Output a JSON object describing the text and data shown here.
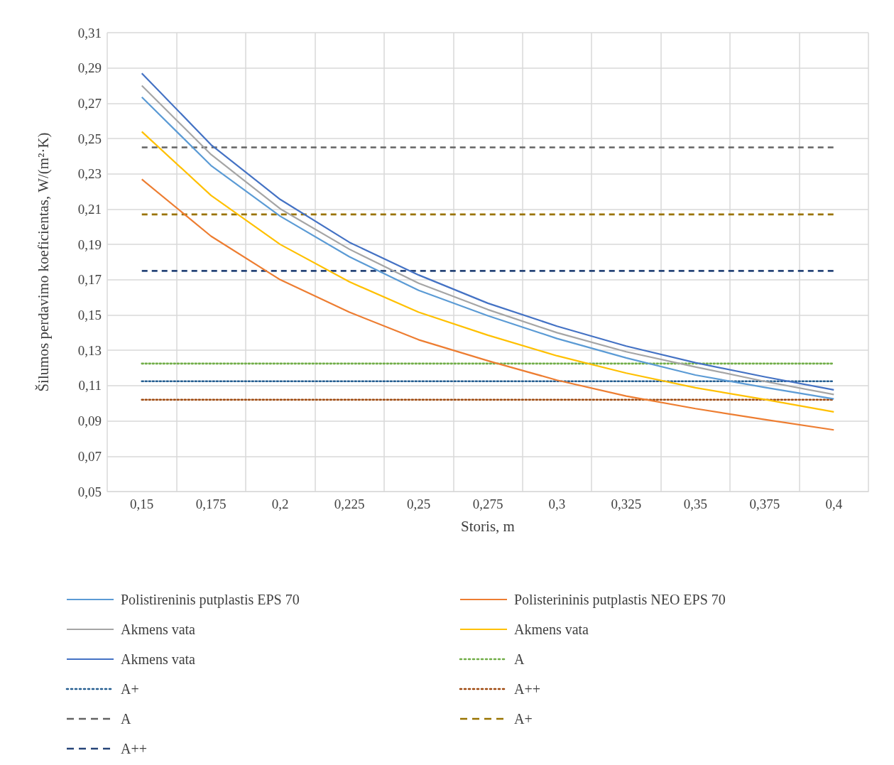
{
  "chart_data": {
    "type": "line",
    "xlabel": "Storis, m",
    "ylabel": "Šilumos perdavimo koeficientas, W/(m²·K)",
    "categories": [
      "0,15",
      "0,175",
      "0,2",
      "0,225",
      "0,25",
      "0,275",
      "0,3",
      "0,325",
      "0,35",
      "0,375",
      "0,4"
    ],
    "ylim": [
      0.05,
      0.31
    ],
    "yticks": [
      {
        "value": 0.05,
        "label": "0,05"
      },
      {
        "value": 0.07,
        "label": "0,07"
      },
      {
        "value": 0.09,
        "label": "0,09"
      },
      {
        "value": 0.11,
        "label": "0,11"
      },
      {
        "value": 0.13,
        "label": "0,13"
      },
      {
        "value": 0.15,
        "label": "0,15"
      },
      {
        "value": 0.17,
        "label": "0,17"
      },
      {
        "value": 0.19,
        "label": "0,19"
      },
      {
        "value": 0.21,
        "label": "0,21"
      },
      {
        "value": 0.23,
        "label": "0,23"
      },
      {
        "value": 0.25,
        "label": "0,25"
      },
      {
        "value": 0.27,
        "label": "0,27"
      },
      {
        "value": 0.29,
        "label": "0,29"
      },
      {
        "value": 0.31,
        "label": "0,31"
      }
    ],
    "grid": true,
    "legend": "bottom",
    "marker": "none",
    "series": [
      {
        "name": "Polistireninis putplastis EPS 70",
        "color": "#5b9bd5",
        "line_style": "solid",
        "values": [
          0.2735,
          0.2347,
          0.206,
          0.183,
          0.164,
          0.1496,
          0.1367,
          0.1257,
          0.116,
          0.109,
          0.1025
        ]
      },
      {
        "name": "Polisterininis putplastis NEO EPS 70",
        "color": "#ed7d31",
        "line_style": "solid",
        "values": [
          0.2269,
          0.1947,
          0.17,
          0.1516,
          0.136,
          0.1241,
          0.1131,
          0.1041,
          0.097,
          0.0908,
          0.0849
        ]
      },
      {
        "name": "Akmens vata",
        "color": "#a5a5a5",
        "line_style": "solid",
        "values": [
          0.28,
          0.241,
          0.2102,
          0.1873,
          0.168,
          0.1531,
          0.14,
          0.1292,
          0.1206,
          0.1124,
          0.105
        ]
      },
      {
        "name": "Akmens vata",
        "color": "#ffc000",
        "line_style": "solid",
        "values": [
          0.2539,
          0.2178,
          0.19,
          0.1688,
          0.1516,
          0.1386,
          0.1269,
          0.1171,
          0.1088,
          0.1022,
          0.0951
        ]
      },
      {
        "name": "Akmens vata",
        "color": "#4472c4",
        "line_style": "solid",
        "values": [
          0.287,
          0.2465,
          0.2155,
          0.1912,
          0.1727,
          0.1567,
          0.1437,
          0.1324,
          0.123,
          0.115,
          0.1076
        ]
      },
      {
        "name": "A",
        "color": "#70ad47",
        "line_style": "dotted",
        "values": [
          0.1225,
          0.1225,
          0.1225,
          0.1225,
          0.1225,
          0.1225,
          0.1225,
          0.1225,
          0.1225,
          0.1225,
          0.1225
        ]
      },
      {
        "name": "A+",
        "color": "#255e91",
        "line_style": "dotted",
        "values": [
          0.1125,
          0.1125,
          0.1125,
          0.1125,
          0.1125,
          0.1125,
          0.1125,
          0.1125,
          0.1125,
          0.1125,
          0.1125
        ]
      },
      {
        "name": "A++",
        "color": "#9e480e",
        "line_style": "dotted",
        "values": [
          0.102,
          0.102,
          0.102,
          0.102,
          0.102,
          0.102,
          0.102,
          0.102,
          0.102,
          0.102,
          0.102
        ]
      },
      {
        "name": "A",
        "color": "#636363",
        "line_style": "dashed",
        "values": [
          0.245,
          0.245,
          0.245,
          0.245,
          0.245,
          0.245,
          0.245,
          0.245,
          0.245,
          0.245,
          0.245
        ]
      },
      {
        "name": "A+",
        "color": "#997300",
        "line_style": "dashed",
        "values": [
          0.207,
          0.207,
          0.207,
          0.207,
          0.207,
          0.207,
          0.207,
          0.207,
          0.207,
          0.207,
          0.207
        ]
      },
      {
        "name": "A++",
        "color": "#264478",
        "line_style": "dashed",
        "values": [
          0.175,
          0.175,
          0.175,
          0.175,
          0.175,
          0.175,
          0.175,
          0.175,
          0.175,
          0.175,
          0.175
        ]
      }
    ]
  }
}
